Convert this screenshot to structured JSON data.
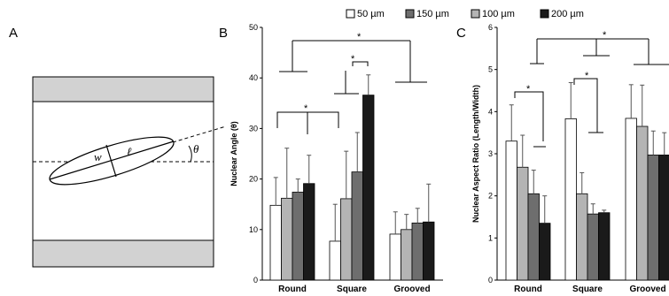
{
  "panel_letters": {
    "a": "A",
    "b": "B",
    "c": "C"
  },
  "diagram": {
    "w_label": "w",
    "l_label": "ℓ",
    "theta_label": "θ"
  },
  "legend": {
    "items": [
      {
        "label": "50 µm",
        "color": "#ffffff"
      },
      {
        "label": "150 µm",
        "color": "#6e6e6e"
      },
      {
        "label": "100 µm",
        "color": "#b4b4b4"
      },
      {
        "label": "200 µm",
        "color": "#1a1a1a"
      }
    ]
  },
  "significance_marker": "*",
  "chart_data": [
    {
      "type": "bar",
      "panel": "B",
      "categories": [
        "Round",
        "Square",
        "Grooved"
      ],
      "ylabel": "Nuclear Angle (θ)",
      "ylim": [
        0,
        50
      ],
      "yticks": [
        0,
        10,
        20,
        30,
        40,
        50
      ],
      "series": [
        {
          "name": "50 µm",
          "color": "#ffffff",
          "values": [
            14.8,
            7.7,
            9.1
          ],
          "errors": [
            5.5,
            7.3,
            4.4
          ]
        },
        {
          "name": "100 µm",
          "color": "#b4b4b4",
          "values": [
            16.2,
            16.1,
            10.0
          ],
          "errors": [
            9.9,
            9.4,
            3.0
          ]
        },
        {
          "name": "150 µm",
          "color": "#6e6e6e",
          "values": [
            17.4,
            21.4,
            11.3
          ],
          "errors": [
            2.6,
            7.8,
            2.9
          ]
        },
        {
          "name": "200 µm",
          "color": "#1a1a1a",
          "values": [
            19.1,
            36.6,
            11.5
          ],
          "errors": [
            5.6,
            4.0,
            7.5
          ]
        }
      ],
      "significance": [
        "Round vs Square",
        "Round vs Square (200 µm)",
        "Square vs Grooved"
      ]
    },
    {
      "type": "bar",
      "panel": "C",
      "categories": [
        "Round",
        "Square",
        "Grooved"
      ],
      "ylabel": "Nuclear Aspect Ratio (Length/Width)",
      "ylim": [
        0,
        6
      ],
      "yticks": [
        0,
        1,
        2,
        3,
        4,
        5,
        6
      ],
      "series": [
        {
          "name": "50 µm",
          "color": "#ffffff",
          "values": [
            3.3,
            3.83,
            3.84
          ],
          "errors": [
            0.86,
            0.86,
            0.8
          ]
        },
        {
          "name": "100 µm",
          "color": "#b4b4b4",
          "values": [
            2.68,
            2.05,
            3.65
          ],
          "errors": [
            0.76,
            0.5,
            0.98
          ]
        },
        {
          "name": "150 µm",
          "color": "#6e6e6e",
          "values": [
            2.05,
            1.57,
            2.97
          ],
          "errors": [
            0.56,
            0.24,
            0.57
          ]
        },
        {
          "name": "200 µm",
          "color": "#1a1a1a",
          "values": [
            1.35,
            1.6,
            2.97
          ],
          "errors": [
            0.65,
            0.06,
            0.53
          ]
        }
      ],
      "significance": [
        "Round 50 vs 200 µm",
        "Square 50 vs 150 µm",
        "Round vs Grooved"
      ]
    }
  ]
}
